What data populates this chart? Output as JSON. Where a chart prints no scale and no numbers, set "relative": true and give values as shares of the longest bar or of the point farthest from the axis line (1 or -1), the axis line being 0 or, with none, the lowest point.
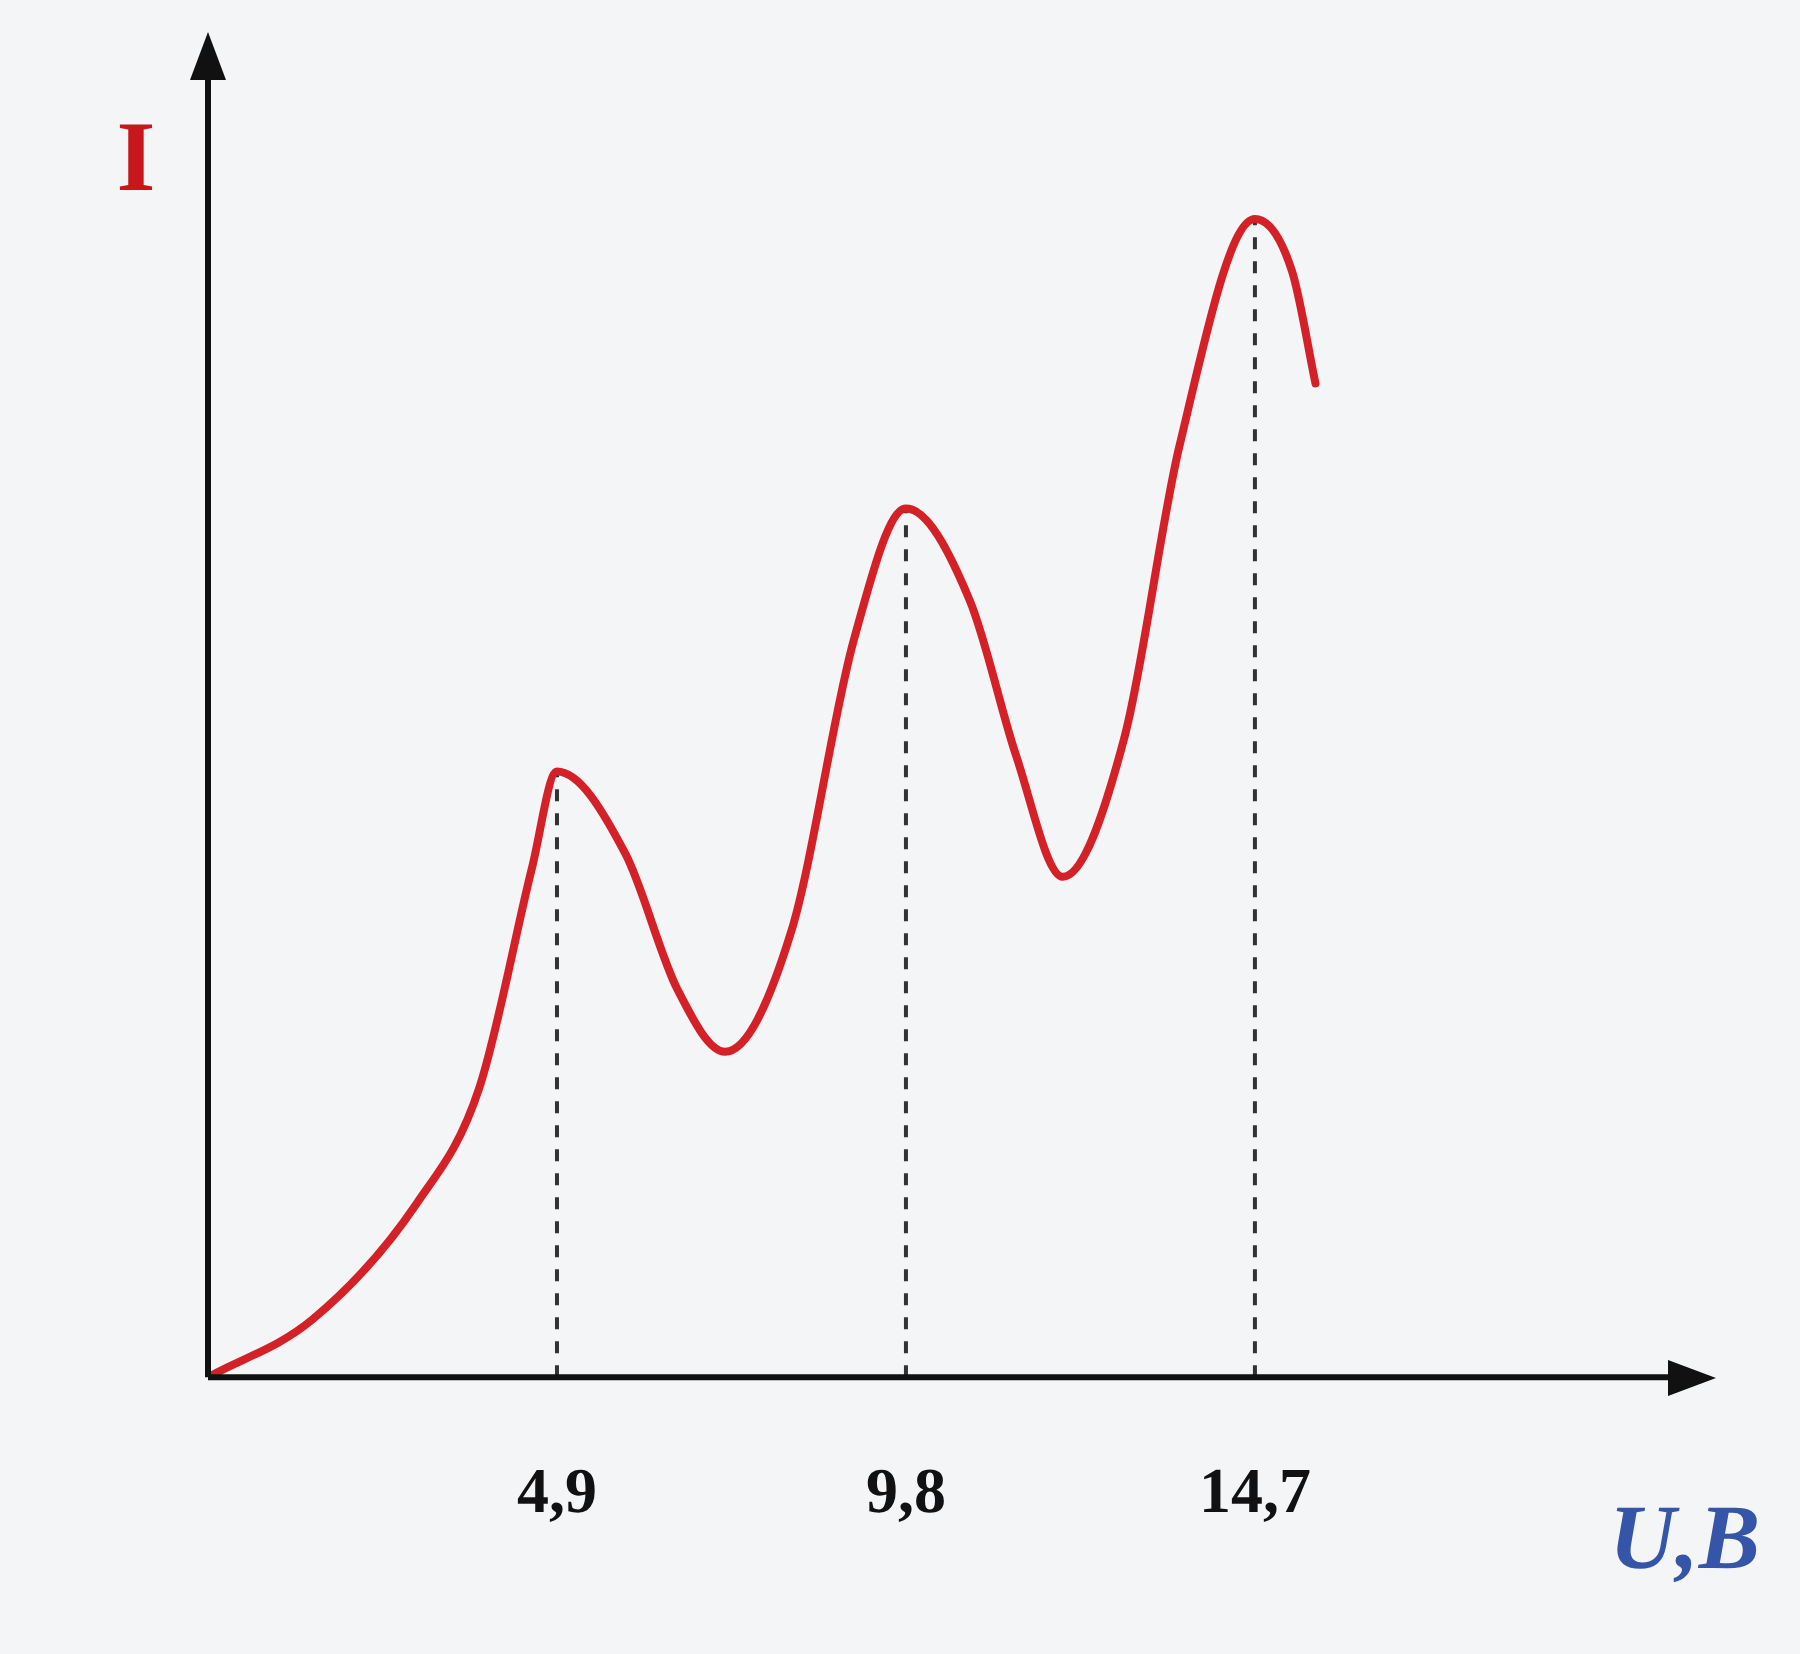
{
  "chart_data": {
    "type": "line",
    "relative": true,
    "xlabel": "U,B",
    "ylabel": "I",
    "xlim": [
      0,
      20.5
    ],
    "xticks": [
      {
        "value": 4.9,
        "label": "4,9"
      },
      {
        "value": 9.8,
        "label": "9,8"
      },
      {
        "value": 14.7,
        "label": "14,7"
      }
    ],
    "series": [
      {
        "color": "#d42027",
        "x": [
          0,
          1.47,
          2.93,
          3.81,
          4.55,
          4.9,
          5.86,
          6.59,
          7.26,
          8.19,
          9.07,
          9.8,
          10.7,
          11.35,
          12.0,
          12.87,
          13.64,
          14.7,
          15.22,
          15.55
        ],
        "values": [
          0,
          0.05,
          0.15,
          0.25,
          0.44,
          0.523,
          0.452,
          0.335,
          0.281,
          0.385,
          0.637,
          0.75,
          0.67,
          0.536,
          0.432,
          0.553,
          0.804,
          1.0,
          0.955,
          0.858
        ]
      }
    ],
    "ref_lines": [
      {
        "axis": "x",
        "value": 4.9,
        "line_style": "dashed"
      },
      {
        "axis": "x",
        "value": 9.8,
        "line_style": "dashed"
      },
      {
        "axis": "x",
        "value": 14.7,
        "line_style": "dashed"
      }
    ],
    "legend": false,
    "grid": false,
    "marker": "none",
    "line_style": "solid"
  }
}
